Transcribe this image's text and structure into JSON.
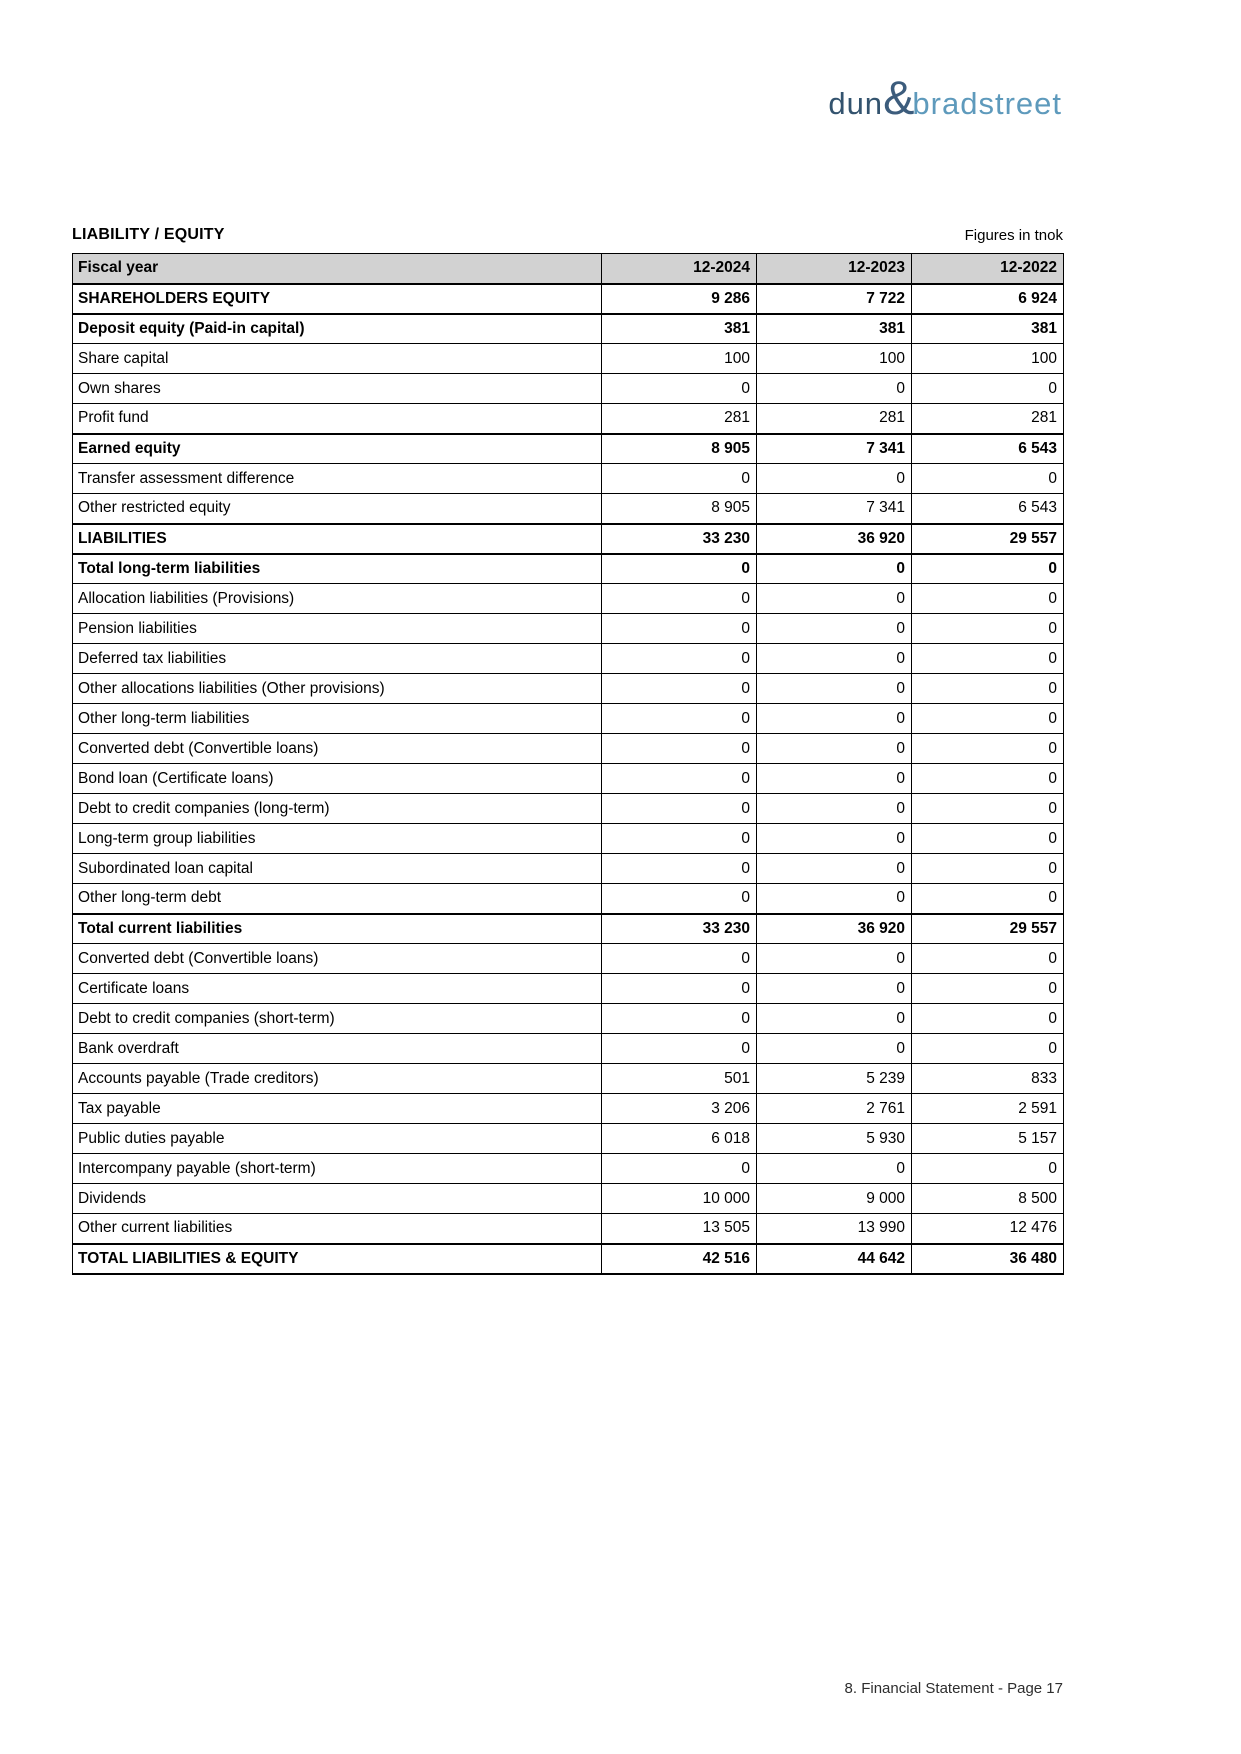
{
  "logo": {
    "dun": "dun",
    "ampersand": "&",
    "bradstreet": "bradstreet",
    "color_dun": "#33536e",
    "color_ampersand": "#3c5c7c",
    "color_bradstreet": "#5e9abc"
  },
  "header": {
    "title": "LIABILITY / EQUITY",
    "units_note": "Figures in tnok"
  },
  "table": {
    "header_label": "Fiscal year",
    "header_bg": "#d2d2d2",
    "columns": [
      "12-2024",
      "12-2023",
      "12-2022"
    ],
    "rows": [
      {
        "label": "SHAREHOLDERS EQUITY",
        "values": [
          "9 286",
          "7 722",
          "6 924"
        ],
        "bold": true
      },
      {
        "label": "Deposit equity (Paid-in capital)",
        "values": [
          "381",
          "381",
          "381"
        ],
        "bold": true
      },
      {
        "label": "Share capital",
        "values": [
          "100",
          "100",
          "100"
        ],
        "bold": false
      },
      {
        "label": "Own shares",
        "values": [
          "0",
          "0",
          "0"
        ],
        "bold": false
      },
      {
        "label": "Profit fund",
        "values": [
          "281",
          "281",
          "281"
        ],
        "bold": false
      },
      {
        "label": "Earned equity",
        "values": [
          "8 905",
          "7 341",
          "6 543"
        ],
        "bold": true
      },
      {
        "label": "Transfer assessment difference",
        "values": [
          "0",
          "0",
          "0"
        ],
        "bold": false
      },
      {
        "label": "Other restricted equity",
        "values": [
          "8 905",
          "7 341",
          "6 543"
        ],
        "bold": false
      },
      {
        "label": "LIABILITIES",
        "values": [
          "33 230",
          "36 920",
          "29 557"
        ],
        "bold": true
      },
      {
        "label": "Total long-term liabilities",
        "values": [
          "0",
          "0",
          "0"
        ],
        "bold": true
      },
      {
        "label": "Allocation liabilities (Provisions)",
        "values": [
          "0",
          "0",
          "0"
        ],
        "bold": false
      },
      {
        "label": "Pension liabilities",
        "values": [
          "0",
          "0",
          "0"
        ],
        "bold": false
      },
      {
        "label": "Deferred tax liabilities",
        "values": [
          "0",
          "0",
          "0"
        ],
        "bold": false
      },
      {
        "label": "Other allocations liabilities (Other provisions)",
        "values": [
          "0",
          "0",
          "0"
        ],
        "bold": false
      },
      {
        "label": "Other long-term liabilities",
        "values": [
          "0",
          "0",
          "0"
        ],
        "bold": false
      },
      {
        "label": "Converted debt (Convertible loans)",
        "values": [
          "0",
          "0",
          "0"
        ],
        "bold": false
      },
      {
        "label": "Bond loan (Certificate loans)",
        "values": [
          "0",
          "0",
          "0"
        ],
        "bold": false
      },
      {
        "label": "Debt to credit companies (long-term)",
        "values": [
          "0",
          "0",
          "0"
        ],
        "bold": false
      },
      {
        "label": "Long-term group liabilities",
        "values": [
          "0",
          "0",
          "0"
        ],
        "bold": false
      },
      {
        "label": "Subordinated loan capital",
        "values": [
          "0",
          "0",
          "0"
        ],
        "bold": false
      },
      {
        "label": "Other long-term debt",
        "values": [
          "0",
          "0",
          "0"
        ],
        "bold": false
      },
      {
        "label": "Total current liabilities",
        "values": [
          "33 230",
          "36 920",
          "29 557"
        ],
        "bold": true
      },
      {
        "label": "Converted debt (Convertible loans)",
        "values": [
          "0",
          "0",
          "0"
        ],
        "bold": false
      },
      {
        "label": "Certificate loans",
        "values": [
          "0",
          "0",
          "0"
        ],
        "bold": false
      },
      {
        "label": "Debt to credit companies (short-term)",
        "values": [
          "0",
          "0",
          "0"
        ],
        "bold": false
      },
      {
        "label": "Bank overdraft",
        "values": [
          "0",
          "0",
          "0"
        ],
        "bold": false
      },
      {
        "label": "Accounts payable (Trade creditors)",
        "values": [
          "501",
          "5 239",
          "833"
        ],
        "bold": false
      },
      {
        "label": "Tax payable",
        "values": [
          "3 206",
          "2 761",
          "2 591"
        ],
        "bold": false
      },
      {
        "label": "Public duties payable",
        "values": [
          "6 018",
          "5 930",
          "5 157"
        ],
        "bold": false
      },
      {
        "label": "Intercompany payable (short-term)",
        "values": [
          "0",
          "0",
          "0"
        ],
        "bold": false
      },
      {
        "label": "Dividends",
        "values": [
          "10 000",
          "9 000",
          "8 500"
        ],
        "bold": false
      },
      {
        "label": "Other current liabilities",
        "values": [
          "13 505",
          "13 990",
          "12 476"
        ],
        "bold": false
      },
      {
        "label": "TOTAL LIABILITIES & EQUITY",
        "values": [
          "42 516",
          "44 642",
          "36 480"
        ],
        "bold": true
      }
    ]
  },
  "footer": {
    "text": "8. Financial Statement - Page 17"
  }
}
